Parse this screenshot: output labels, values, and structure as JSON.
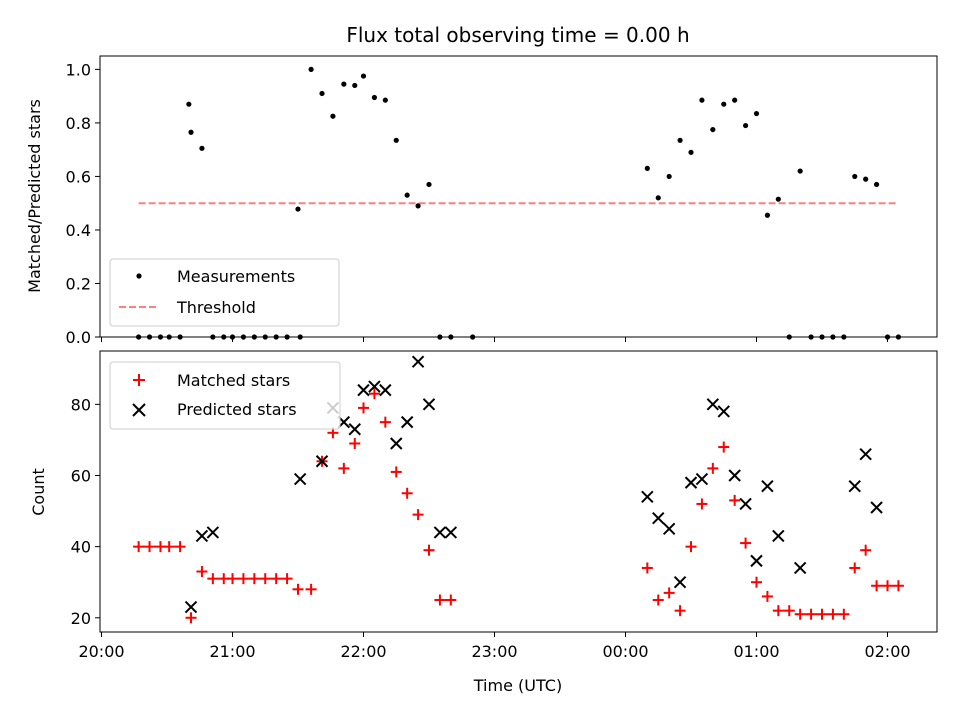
{
  "chart_data": [
    {
      "type": "scatter",
      "title": "Flux total observing time = 0.00 h",
      "xlabel": "",
      "ylabel": "Matched/Predicted stars",
      "ylim": [
        0,
        1.05
      ],
      "yticks": [
        "0.0",
        "0.2",
        "0.4",
        "0.6",
        "0.8",
        "1.0"
      ],
      "ytick_values": [
        0,
        0.2,
        0.4,
        0.6,
        0.8,
        1.0
      ],
      "legend": {
        "placement": "lower-left",
        "entries": [
          "Measurements",
          "Threshold"
        ]
      },
      "threshold": {
        "name": "Threshold",
        "value": 0.5,
        "x_start": "20:17",
        "x_end": "02:05",
        "color": "#ff7f7f"
      },
      "series": [
        {
          "name": "Measurements",
          "marker": "dot",
          "color": "#000000",
          "x": [
            "20:17",
            "20:22",
            "20:27",
            "20:31",
            "20:36",
            "20:40",
            "20:41",
            "20:46",
            "20:51",
            "20:56",
            "21:00",
            "21:05",
            "21:10",
            "21:15",
            "21:20",
            "21:25",
            "21:30",
            "21:31",
            "21:36",
            "21:41",
            "21:46",
            "21:51",
            "21:56",
            "22:00",
            "22:05",
            "22:10",
            "22:15",
            "22:20",
            "22:25",
            "22:30",
            "22:35",
            "22:40",
            "22:50",
            "00:10",
            "00:15",
            "00:20",
            "00:25",
            "00:30",
            "00:35",
            "00:40",
            "00:45",
            "00:50",
            "00:55",
            "01:00",
            "01:05",
            "01:10",
            "01:15",
            "01:20",
            "01:25",
            "01:30",
            "01:35",
            "01:40",
            "01:45",
            "01:50",
            "01:55",
            "02:00",
            "02:05"
          ],
          "y": [
            0,
            0,
            0,
            0,
            0,
            0.87,
            0.765,
            0.705,
            0,
            0,
            0,
            0,
            0,
            0,
            0,
            0,
            0.478,
            0,
            1.0,
            0.91,
            0.825,
            0.945,
            0.94,
            0.975,
            0.895,
            0.885,
            0.735,
            0.53,
            0.49,
            0.57,
            0,
            0,
            0,
            0.63,
            0.52,
            0.6,
            0.735,
            0.69,
            0.885,
            0.775,
            0.87,
            0.885,
            0.79,
            0.835,
            0.455,
            0.515,
            0,
            0.62,
            0,
            0,
            0,
            0,
            0.6,
            0.59,
            0.57,
            0,
            0
          ]
        }
      ]
    },
    {
      "type": "scatter",
      "title": "",
      "xlabel": "Time (UTC)",
      "ylabel": "Count",
      "ylim": [
        16,
        95
      ],
      "yticks": [
        "20",
        "40",
        "60",
        "80"
      ],
      "ytick_values": [
        20,
        40,
        60,
        80
      ],
      "xlim": [
        "20:00",
        "02:25"
      ],
      "xticks": [
        "20:00",
        "21:00",
        "22:00",
        "23:00",
        "00:00",
        "01:00",
        "02:00"
      ],
      "legend": {
        "placement": "top-left",
        "entries": [
          "Matched stars",
          "Predicted stars"
        ]
      },
      "series": [
        {
          "name": "Matched stars",
          "marker": "plus",
          "color": "#ff0000",
          "x": [
            "20:17",
            "20:22",
            "20:27",
            "20:31",
            "20:36",
            "20:41",
            "20:46",
            "20:51",
            "20:56",
            "21:00",
            "21:05",
            "21:10",
            "21:15",
            "21:20",
            "21:25",
            "21:30",
            "21:36",
            "21:41",
            "21:46",
            "21:51",
            "21:56",
            "22:00",
            "22:05",
            "22:10",
            "22:15",
            "22:20",
            "22:25",
            "22:30",
            "22:35",
            "22:40",
            "00:10",
            "00:15",
            "00:20",
            "00:25",
            "00:30",
            "00:35",
            "00:40",
            "00:45",
            "00:50",
            "00:55",
            "01:00",
            "01:05",
            "01:10",
            "01:15",
            "01:20",
            "01:25",
            "01:30",
            "01:35",
            "01:40",
            "01:45",
            "01:50",
            "01:55",
            "02:00",
            "02:05"
          ],
          "y": [
            40,
            40,
            40,
            40,
            40,
            20,
            33,
            31,
            31,
            31,
            31,
            31,
            31,
            31,
            31,
            28,
            28,
            64,
            72,
            62,
            69,
            79,
            83,
            75,
            61,
            55,
            49,
            39,
            25,
            25,
            34,
            25,
            27,
            22,
            40,
            52,
            62,
            68,
            53,
            41,
            30,
            26,
            22,
            22,
            21,
            21,
            21,
            21,
            21,
            34,
            39,
            29,
            29,
            29
          ]
        },
        {
          "name": "Predicted stars",
          "marker": "x",
          "color": "#000000",
          "x": [
            "20:41",
            "20:46",
            "20:51",
            "21:31",
            "21:41",
            "21:46",
            "21:51",
            "21:56",
            "22:00",
            "22:05",
            "22:10",
            "22:15",
            "22:20",
            "22:25",
            "22:30",
            "22:35",
            "22:40",
            "00:10",
            "00:15",
            "00:20",
            "00:25",
            "00:30",
            "00:35",
            "00:40",
            "00:45",
            "00:50",
            "00:55",
            "01:00",
            "01:05",
            "01:10",
            "01:20",
            "01:45",
            "01:50",
            "01:55"
          ],
          "y": [
            23,
            43,
            44,
            59,
            64,
            79,
            75,
            73,
            84,
            85,
            84,
            69,
            75,
            92,
            80,
            44,
            44,
            54,
            48,
            45,
            30,
            58,
            59,
            80,
            78,
            60,
            52,
            36,
            57,
            43,
            34,
            57,
            66,
            51
          ]
        }
      ]
    }
  ]
}
